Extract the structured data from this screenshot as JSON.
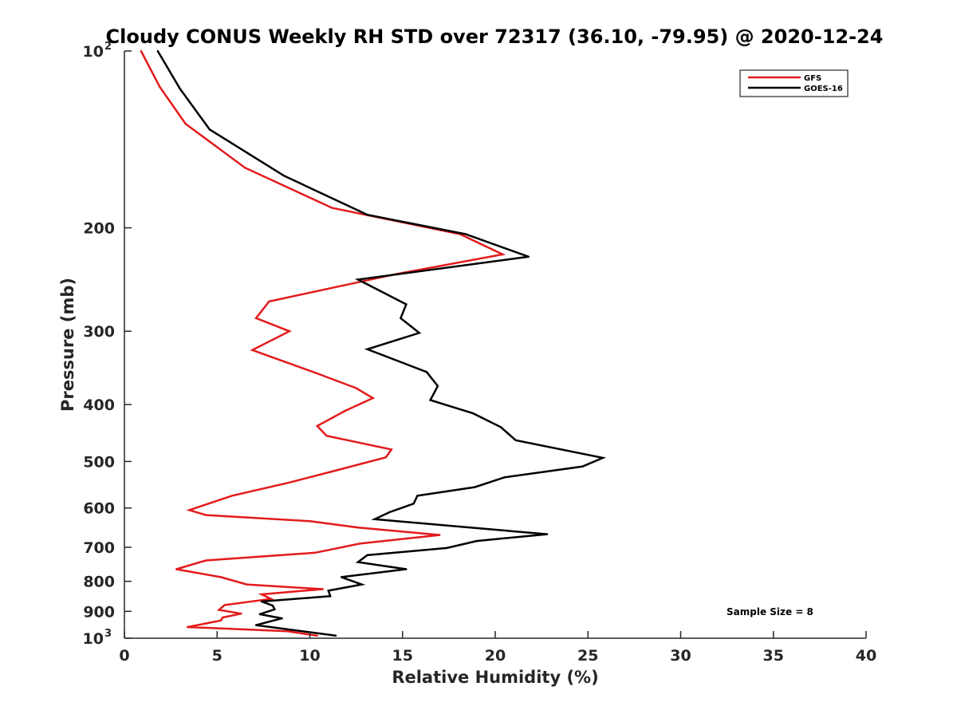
{
  "chart_data": {
    "type": "line",
    "title": "Cloudy CONUS Weekly RH STD over 72317 (36.10, -79.95) @ 2020-12-24",
    "xlabel": "Relative Humidity (%)",
    "ylabel": "Pressure (mb)",
    "xlim": [
      0,
      40
    ],
    "ylim": [
      100,
      1000
    ],
    "y_scale": "log",
    "y_reversed": true,
    "x_ticks": [
      "0",
      "5",
      "10",
      "15",
      "20",
      "25",
      "30",
      "35",
      "40"
    ],
    "x_tick_values": [
      0,
      5,
      10,
      15,
      20,
      25,
      30,
      35,
      40
    ],
    "y_ticks": [
      {
        "value": 100,
        "base": "10",
        "exp": "2"
      },
      {
        "value": 200,
        "label": "200"
      },
      {
        "value": 300,
        "label": "300"
      },
      {
        "value": 400,
        "label": "400"
      },
      {
        "value": 500,
        "label": "500"
      },
      {
        "value": 600,
        "label": "600"
      },
      {
        "value": 700,
        "label": "700"
      },
      {
        "value": 800,
        "label": "800"
      },
      {
        "value": 900,
        "label": "900"
      },
      {
        "value": 1000,
        "base": "10",
        "exp": "3"
      }
    ],
    "grid": false,
    "legend_position": "top-right",
    "annotation": "Sample Size = 8",
    "series": [
      {
        "name": "GFS",
        "color": "#e31a1c",
        "points": [
          [
            0.9,
            100
          ],
          [
            1.9,
            115
          ],
          [
            3.3,
            133
          ],
          [
            6.5,
            158
          ],
          [
            11.2,
            185
          ],
          [
            18.1,
            205
          ],
          [
            20.4,
            222
          ],
          [
            14.6,
            240
          ],
          [
            7.8,
            267
          ],
          [
            7.1,
            285
          ],
          [
            8.9,
            300
          ],
          [
            6.9,
            323
          ],
          [
            10.5,
            355
          ],
          [
            12.5,
            375
          ],
          [
            13.4,
            390
          ],
          [
            11.9,
            410
          ],
          [
            10.4,
            435
          ],
          [
            10.9,
            452
          ],
          [
            14.4,
            477
          ],
          [
            14.1,
            492
          ],
          [
            11.2,
            520
          ],
          [
            8.9,
            543
          ],
          [
            5.8,
            572
          ],
          [
            3.5,
            605
          ],
          [
            4.4,
            617
          ],
          [
            10.0,
            632
          ],
          [
            12.6,
            648
          ],
          [
            17.0,
            667
          ],
          [
            12.7,
            690
          ],
          [
            10.3,
            715
          ],
          [
            4.4,
            737
          ],
          [
            2.8,
            763
          ],
          [
            5.2,
            787
          ],
          [
            6.6,
            810
          ],
          [
            10.7,
            825
          ],
          [
            7.4,
            842
          ],
          [
            7.9,
            857
          ],
          [
            5.4,
            878
          ],
          [
            5.1,
            895
          ],
          [
            6.3,
            908
          ],
          [
            5.3,
            922
          ],
          [
            5.2,
            933
          ],
          [
            3.4,
            957
          ],
          [
            8.8,
            973
          ],
          [
            10.4,
            990
          ]
        ]
      },
      {
        "name": "GOES-16",
        "color": "#000000",
        "points": [
          [
            1.8,
            100
          ],
          [
            3.0,
            116
          ],
          [
            4.6,
            136
          ],
          [
            8.6,
            163
          ],
          [
            13.1,
            190
          ],
          [
            18.4,
            205
          ],
          [
            21.8,
            224
          ],
          [
            12.6,
            245
          ],
          [
            15.2,
            270
          ],
          [
            14.9,
            285
          ],
          [
            15.9,
            302
          ],
          [
            13.1,
            322
          ],
          [
            16.3,
            352
          ],
          [
            16.9,
            372
          ],
          [
            16.5,
            393
          ],
          [
            18.8,
            414
          ],
          [
            20.3,
            437
          ],
          [
            21.1,
            460
          ],
          [
            25.8,
            493
          ],
          [
            24.7,
            510
          ],
          [
            20.5,
            532
          ],
          [
            18.9,
            553
          ],
          [
            15.8,
            572
          ],
          [
            15.6,
            590
          ],
          [
            14.3,
            610
          ],
          [
            13.5,
            627
          ],
          [
            17.9,
            645
          ],
          [
            22.8,
            665
          ],
          [
            19.0,
            683
          ],
          [
            17.4,
            702
          ],
          [
            13.1,
            722
          ],
          [
            12.6,
            742
          ],
          [
            15.2,
            763
          ],
          [
            11.7,
            787
          ],
          [
            12.8,
            810
          ],
          [
            11.0,
            830
          ],
          [
            11.1,
            848
          ],
          [
            7.4,
            866
          ],
          [
            8.0,
            880
          ],
          [
            8.1,
            893
          ],
          [
            7.3,
            910
          ],
          [
            8.5,
            925
          ],
          [
            7.1,
            950
          ],
          [
            11.4,
            990
          ]
        ]
      }
    ]
  }
}
